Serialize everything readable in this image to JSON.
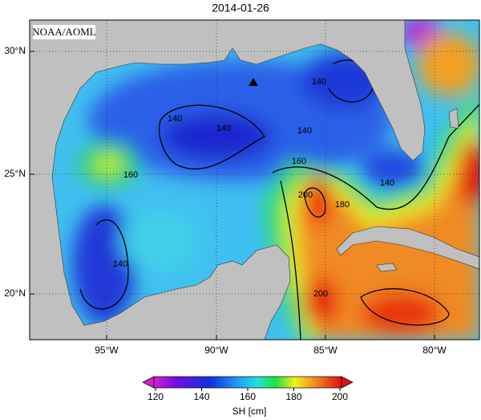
{
  "title": "2014-01-26",
  "watermark": "NOAA/AOML",
  "map": {
    "lon_labels": [
      "95°W",
      "90°W",
      "85°W",
      "80°W"
    ],
    "lat_labels": [
      "30°N",
      "25°N",
      "20°N"
    ],
    "contour_labels": [
      "140",
      "140",
      "140",
      "140",
      "140",
      "140",
      "160",
      "160",
      "180",
      "200",
      "200"
    ]
  },
  "colorbar": {
    "ticks": [
      "120",
      "140",
      "160",
      "180",
      "200"
    ],
    "label": "SH [cm]"
  }
}
